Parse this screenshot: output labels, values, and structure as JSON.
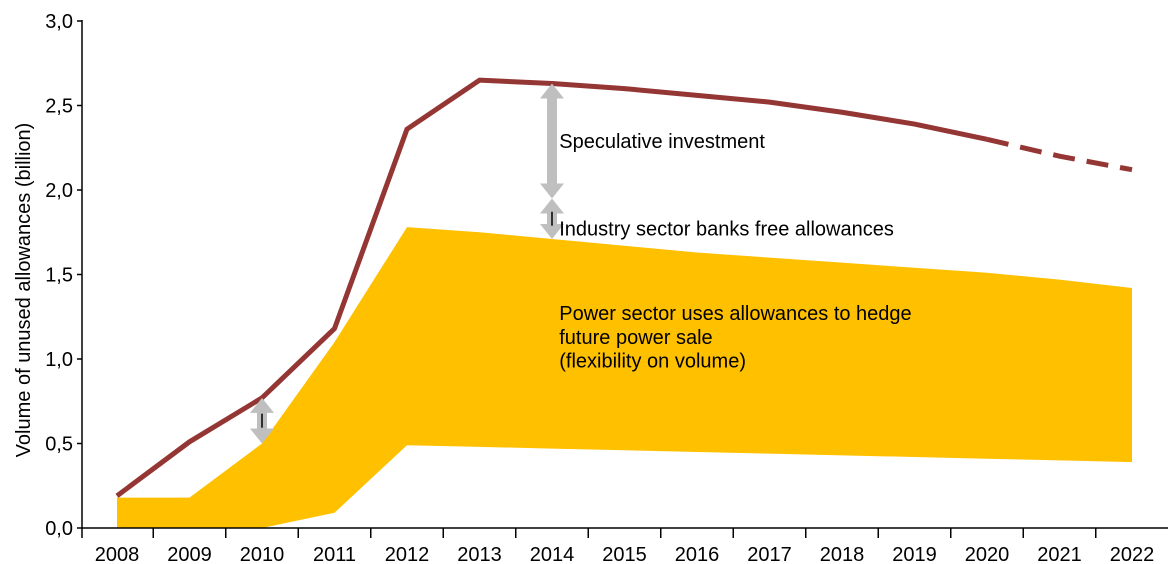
{
  "chart_data": {
    "type": "area",
    "title": "",
    "xlabel": "",
    "ylabel": "Volume of unused allowances (billion)",
    "x": [
      "2008",
      "2009",
      "2010",
      "2011",
      "2012",
      "2013",
      "2014",
      "2015",
      "2016",
      "2017",
      "2018",
      "2019",
      "2020",
      "2021",
      "2022"
    ],
    "ylim": [
      0,
      3.0
    ],
    "yticks": [
      "0,0",
      "0,5",
      "1,0",
      "1,5",
      "2,0",
      "2,5",
      "3,0"
    ],
    "grid": false,
    "series": [
      {
        "kind": "line",
        "color": "#943634",
        "values": [
          0.19,
          0.51,
          0.77,
          1.18,
          2.36,
          2.65,
          2.63,
          2.6,
          2.56,
          2.52,
          2.46,
          2.39,
          2.3,
          2.2,
          2.12
        ],
        "projected_from": "2020"
      },
      {
        "kind": "band",
        "color": "#FFC000",
        "upper": [
          0.18,
          0.18,
          0.5,
          1.1,
          1.78,
          1.75,
          1.71,
          1.67,
          1.63,
          1.6,
          1.57,
          1.54,
          1.51,
          1.47,
          1.42
        ],
        "lower": [
          0.0,
          0.0,
          0.0,
          0.09,
          0.49,
          0.48,
          0.47,
          0.46,
          0.45,
          0.44,
          0.43,
          0.42,
          0.41,
          0.4,
          0.39
        ]
      }
    ],
    "annotations": [
      {
        "id": "speculative",
        "text": "Speculative investment",
        "x": "2014.1",
        "y": 2.25
      },
      {
        "id": "industry",
        "text": "Industry sector banks free allowances",
        "x": "2014.1",
        "y": 1.73
      },
      {
        "id": "power1",
        "text": "Power sector uses allowances to hedge",
        "x": "2014.1",
        "y": 1.23
      },
      {
        "id": "power2",
        "text": "future power sale",
        "x": "2014.1",
        "y": 1.09
      },
      {
        "id": "power3",
        "text": "(flexibility on volume)",
        "x": "2014.1",
        "y": 0.95
      }
    ],
    "arrows": [
      {
        "id": "arrow-2010",
        "x": 2010,
        "y_top": 0.77,
        "y_bottom": 0.5,
        "color": "#BFBFBF"
      },
      {
        "id": "arrow-speculative",
        "x": 2014,
        "y_top": 2.63,
        "y_bottom": 1.95,
        "color": "#BFBFBF"
      },
      {
        "id": "arrow-industry",
        "x": 2014,
        "y_top": 1.95,
        "y_bottom": 1.71,
        "color": "#BFBFBF"
      }
    ]
  }
}
